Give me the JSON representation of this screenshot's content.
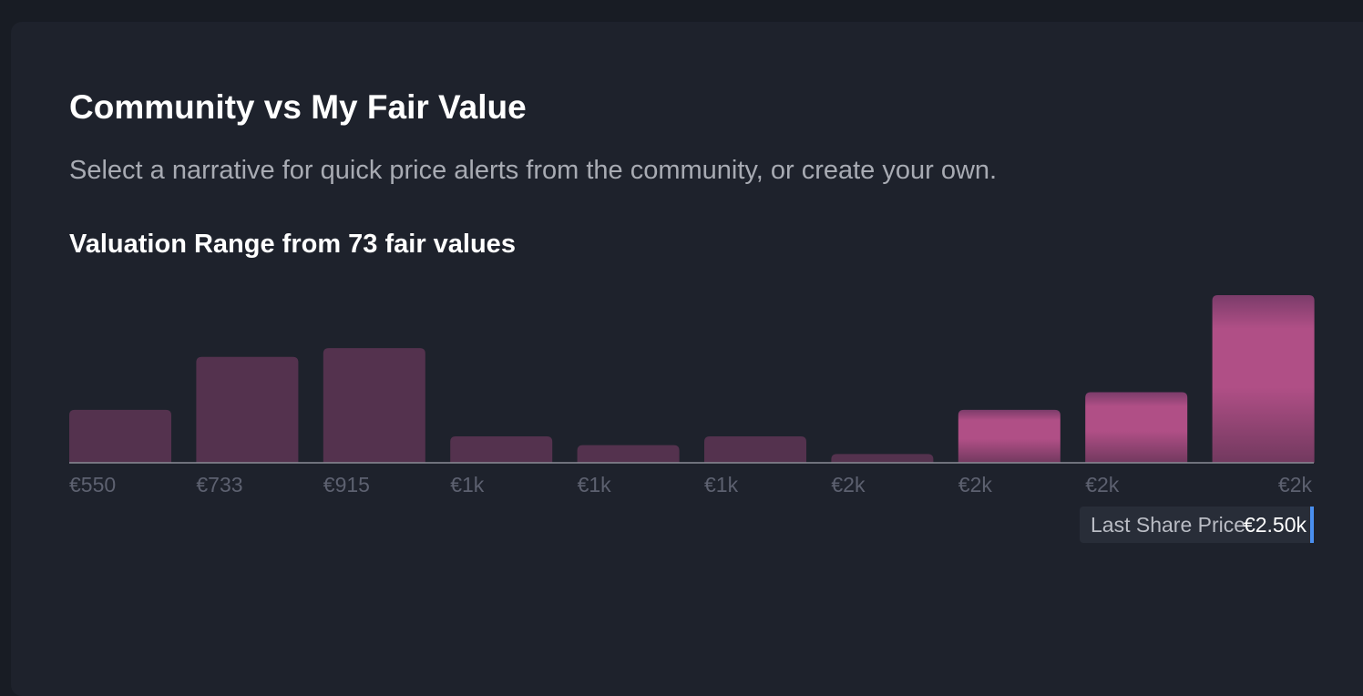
{
  "header": {
    "title": "Community vs My Fair Value",
    "subtitle": "Select a narrative for quick price alerts from the community, or create your own.",
    "range_title": "Valuation Range from 73 fair values"
  },
  "last_price": {
    "label": "Last Share Price",
    "value": "€2.50k"
  },
  "colors": {
    "card_background": "#1e222c",
    "bar_muted": "#54324e",
    "bar_highlight": "#b04f86",
    "axis_line": "#8a8d96",
    "price_marker": "#4a8ff0"
  },
  "chart_data": {
    "type": "bar",
    "title": "Valuation Range from 73 fair values",
    "categories": [
      "€550",
      "€733",
      "€915",
      "€1k",
      "€1k",
      "€1k",
      "€2k",
      "€2k",
      "€2k",
      "€2k"
    ],
    "series": [
      {
        "values": [
          6,
          12,
          13,
          3,
          2,
          3,
          1,
          6,
          8,
          19
        ]
      }
    ],
    "highlighted_from_index": 7,
    "ylim": [
      0,
      19
    ],
    "grid": false,
    "legend": "none"
  }
}
